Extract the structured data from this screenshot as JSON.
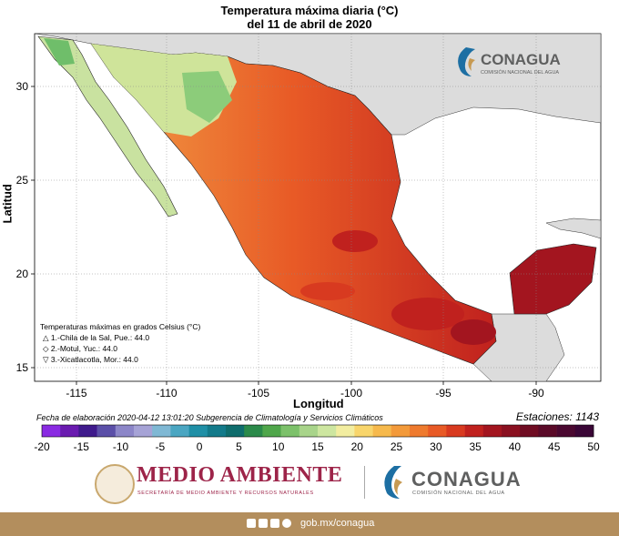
{
  "title": {
    "line1": "Temperatura máxima diaria (°C)",
    "line2": "del 11 de abril de 2020"
  },
  "axes": {
    "xlabel": "Longitud",
    "ylabel": "Latitud",
    "x_ticks": [
      "-115",
      "-110",
      "-105",
      "-100",
      "-95",
      "-90"
    ],
    "y_ticks": [
      "30",
      "25",
      "20",
      "15"
    ]
  },
  "map_logo": {
    "name": "CONAGUA",
    "subtitle": "COMISIÓN NACIONAL DEL AGUA"
  },
  "stations_legend": {
    "heading": "Temperaturas máximas en grados Celsius (°C)",
    "items": [
      {
        "symbol": "△",
        "text": "1.-Chila de la Sal, Pue.: 44.0"
      },
      {
        "symbol": "◇",
        "text": "2.-Motul, Yuc.: 44.0"
      },
      {
        "symbol": "▽",
        "text": "3.-Xicatlacotla, Mor.: 44.0"
      }
    ]
  },
  "fecha": "Fecha de elaboración 2020-04-12 13:01:20 Subgerencia de Climatología y Servicios Climáticos",
  "estaciones": "Estaciones:  1143",
  "colorbar": {
    "labels": [
      "-20",
      "-15",
      "-10",
      "-5",
      "0",
      "5",
      "10",
      "15",
      "20",
      "25",
      "30",
      "35",
      "40",
      "45",
      "50"
    ],
    "colors": [
      "#8a2be2",
      "#6a1bb0",
      "#3f1a8c",
      "#5b4fa8",
      "#8c86c8",
      "#a6a3d6",
      "#7fb8d4",
      "#4aa6c2",
      "#1f8fa6",
      "#137a8a",
      "#0f6d6d",
      "#2b8a4a",
      "#4fa64a",
      "#7cc16a",
      "#a8d48a",
      "#cde6a0",
      "#f2eda0",
      "#f8d56b",
      "#f6b94c",
      "#f39a3a",
      "#ee7a2e",
      "#e85a26",
      "#d83a20",
      "#c0211e",
      "#a3151f",
      "#8a1020",
      "#6f0c22",
      "#5a0a28",
      "#4a0830",
      "#3a0636"
    ]
  },
  "logos": {
    "semarnat": "MEDIO AMBIENTE",
    "semarnat_sub": "SECRETARÍA DE MEDIO AMBIENTE Y RECURSOS NATURALES",
    "conagua": "CONAGUA",
    "conagua_sub": "COMISIÓN NACIONAL DEL AGUA"
  },
  "footer": {
    "url": "gob.mx/conagua",
    "icons": [
      "facebook-icon",
      "twitter-icon",
      "instagram-icon",
      "youtube-icon"
    ]
  }
}
